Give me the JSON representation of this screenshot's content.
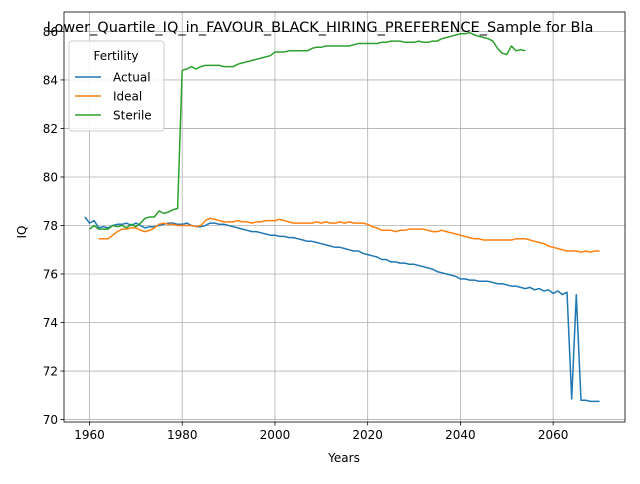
{
  "chart_data": {
    "type": "line",
    "title": "Lower_Quartile_IQ_in_FAVOUR_BLACK_HIRING_PREFERENCE_Sample for Bla",
    "xlabel": "Years",
    "ylabel": "IQ",
    "xlim": [
      1954.5,
      2075.5
    ],
    "ylim": [
      69.9,
      86.8
    ],
    "xticks": [
      1960,
      1980,
      2000,
      2020,
      2040,
      2060
    ],
    "yticks": [
      70,
      72,
      74,
      76,
      78,
      80,
      82,
      84,
      86
    ],
    "grid": true,
    "legend": {
      "title": "Fertility",
      "placement": "upper-left"
    },
    "series": [
      {
        "name": "Actual",
        "color": "#1f77b4",
        "points": [
          [
            1959,
            78.35
          ],
          [
            1960,
            78.1
          ],
          [
            1961,
            78.2
          ],
          [
            1962,
            77.9
          ],
          [
            1963,
            77.95
          ],
          [
            1964,
            77.9
          ],
          [
            1965,
            78.0
          ],
          [
            1966,
            78.05
          ],
          [
            1967,
            78.05
          ],
          [
            1968,
            78.1
          ],
          [
            1969,
            78.0
          ],
          [
            1970,
            78.1
          ],
          [
            1971,
            78.0
          ],
          [
            1972,
            77.9
          ],
          [
            1973,
            77.95
          ],
          [
            1974,
            77.95
          ],
          [
            1975,
            78.0
          ],
          [
            1976,
            78.05
          ],
          [
            1977,
            78.1
          ],
          [
            1978,
            78.1
          ],
          [
            1979,
            78.05
          ],
          [
            1980,
            78.05
          ],
          [
            1981,
            78.1
          ],
          [
            1982,
            78.0
          ],
          [
            1983,
            77.95
          ],
          [
            1984,
            77.95
          ],
          [
            1985,
            78.0
          ],
          [
            1986,
            78.1
          ],
          [
            1987,
            78.1
          ],
          [
            1988,
            78.05
          ],
          [
            1989,
            78.05
          ],
          [
            1990,
            78.0
          ],
          [
            1991,
            77.95
          ],
          [
            1992,
            77.9
          ],
          [
            1993,
            77.85
          ],
          [
            1994,
            77.8
          ],
          [
            1995,
            77.75
          ],
          [
            1996,
            77.75
          ],
          [
            1997,
            77.7
          ],
          [
            1998,
            77.65
          ],
          [
            1999,
            77.6
          ],
          [
            2000,
            77.6
          ],
          [
            2001,
            77.55
          ],
          [
            2002,
            77.55
          ],
          [
            2003,
            77.5
          ],
          [
            2004,
            77.5
          ],
          [
            2005,
            77.45
          ],
          [
            2006,
            77.4
          ],
          [
            2007,
            77.35
          ],
          [
            2008,
            77.35
          ],
          [
            2009,
            77.3
          ],
          [
            2010,
            77.25
          ],
          [
            2011,
            77.2
          ],
          [
            2012,
            77.15
          ],
          [
            2013,
            77.1
          ],
          [
            2014,
            77.1
          ],
          [
            2015,
            77.05
          ],
          [
            2016,
            77.0
          ],
          [
            2017,
            76.95
          ],
          [
            2018,
            76.95
          ],
          [
            2019,
            76.85
          ],
          [
            2020,
            76.8
          ],
          [
            2021,
            76.75
          ],
          [
            2022,
            76.7
          ],
          [
            2023,
            76.6
          ],
          [
            2024,
            76.6
          ],
          [
            2025,
            76.5
          ],
          [
            2026,
            76.5
          ],
          [
            2027,
            76.45
          ],
          [
            2028,
            76.45
          ],
          [
            2029,
            76.4
          ],
          [
            2030,
            76.4
          ],
          [
            2031,
            76.35
          ],
          [
            2032,
            76.3
          ],
          [
            2033,
            76.25
          ],
          [
            2034,
            76.2
          ],
          [
            2035,
            76.1
          ],
          [
            2036,
            76.05
          ],
          [
            2037,
            76.0
          ],
          [
            2038,
            75.95
          ],
          [
            2039,
            75.9
          ],
          [
            2040,
            75.8
          ],
          [
            2041,
            75.8
          ],
          [
            2042,
            75.75
          ],
          [
            2043,
            75.75
          ],
          [
            2044,
            75.7
          ],
          [
            2045,
            75.7
          ],
          [
            2046,
            75.7
          ],
          [
            2047,
            75.65
          ],
          [
            2048,
            75.6
          ],
          [
            2049,
            75.6
          ],
          [
            2050,
            75.55
          ],
          [
            2051,
            75.5
          ],
          [
            2052,
            75.5
          ],
          [
            2053,
            75.45
          ],
          [
            2054,
            75.4
          ],
          [
            2055,
            75.45
          ],
          [
            2056,
            75.35
          ],
          [
            2057,
            75.4
          ],
          [
            2058,
            75.3
          ],
          [
            2059,
            75.35
          ],
          [
            2060,
            75.2
          ],
          [
            2061,
            75.3
          ],
          [
            2062,
            75.15
          ],
          [
            2063,
            75.25
          ],
          [
            2064,
            70.85
          ],
          [
            2065,
            75.15
          ],
          [
            2066,
            70.8
          ],
          [
            2067,
            70.8
          ],
          [
            2068,
            70.75
          ],
          [
            2069,
            70.75
          ],
          [
            2070,
            70.75
          ]
        ]
      },
      {
        "name": "Ideal",
        "color": "#ff7f0e",
        "points": [
          [
            1962,
            77.45
          ],
          [
            1963,
            77.45
          ],
          [
            1964,
            77.45
          ],
          [
            1965,
            77.6
          ],
          [
            1966,
            77.75
          ],
          [
            1967,
            77.85
          ],
          [
            1968,
            77.85
          ],
          [
            1969,
            77.9
          ],
          [
            1970,
            77.9
          ],
          [
            1971,
            77.8
          ],
          [
            1972,
            77.75
          ],
          [
            1973,
            77.8
          ],
          [
            1974,
            77.9
          ],
          [
            1975,
            78.05
          ],
          [
            1976,
            78.1
          ],
          [
            1977,
            78.05
          ],
          [
            1978,
            78.05
          ],
          [
            1979,
            78.0
          ],
          [
            1980,
            78.0
          ],
          [
            1981,
            78.0
          ],
          [
            1982,
            78.0
          ],
          [
            1983,
            77.95
          ],
          [
            1984,
            78.0
          ],
          [
            1985,
            78.2
          ],
          [
            1986,
            78.3
          ],
          [
            1987,
            78.25
          ],
          [
            1988,
            78.2
          ],
          [
            1989,
            78.15
          ],
          [
            1990,
            78.15
          ],
          [
            1991,
            78.15
          ],
          [
            1992,
            78.2
          ],
          [
            1993,
            78.15
          ],
          [
            1994,
            78.15
          ],
          [
            1995,
            78.1
          ],
          [
            1996,
            78.15
          ],
          [
            1997,
            78.15
          ],
          [
            1998,
            78.2
          ],
          [
            1999,
            78.2
          ],
          [
            2000,
            78.2
          ],
          [
            2001,
            78.25
          ],
          [
            2002,
            78.2
          ],
          [
            2003,
            78.15
          ],
          [
            2004,
            78.1
          ],
          [
            2005,
            78.1
          ],
          [
            2006,
            78.1
          ],
          [
            2007,
            78.1
          ],
          [
            2008,
            78.1
          ],
          [
            2009,
            78.15
          ],
          [
            2010,
            78.1
          ],
          [
            2011,
            78.15
          ],
          [
            2012,
            78.1
          ],
          [
            2013,
            78.1
          ],
          [
            2014,
            78.15
          ],
          [
            2015,
            78.1
          ],
          [
            2016,
            78.15
          ],
          [
            2017,
            78.1
          ],
          [
            2018,
            78.1
          ],
          [
            2019,
            78.1
          ],
          [
            2020,
            78.05
          ],
          [
            2021,
            77.95
          ],
          [
            2022,
            77.9
          ],
          [
            2023,
            77.8
          ],
          [
            2024,
            77.8
          ],
          [
            2025,
            77.8
          ],
          [
            2026,
            77.75
          ],
          [
            2027,
            77.8
          ],
          [
            2028,
            77.8
          ],
          [
            2029,
            77.85
          ],
          [
            2030,
            77.85
          ],
          [
            2031,
            77.85
          ],
          [
            2032,
            77.85
          ],
          [
            2033,
            77.8
          ],
          [
            2034,
            77.75
          ],
          [
            2035,
            77.75
          ],
          [
            2036,
            77.8
          ],
          [
            2037,
            77.75
          ],
          [
            2038,
            77.7
          ],
          [
            2039,
            77.65
          ],
          [
            2040,
            77.6
          ],
          [
            2041,
            77.55
          ],
          [
            2042,
            77.5
          ],
          [
            2043,
            77.45
          ],
          [
            2044,
            77.45
          ],
          [
            2045,
            77.4
          ],
          [
            2046,
            77.4
          ],
          [
            2047,
            77.4
          ],
          [
            2048,
            77.4
          ],
          [
            2049,
            77.4
          ],
          [
            2050,
            77.4
          ],
          [
            2051,
            77.4
          ],
          [
            2052,
            77.45
          ],
          [
            2053,
            77.45
          ],
          [
            2054,
            77.45
          ],
          [
            2055,
            77.4
          ],
          [
            2056,
            77.35
          ],
          [
            2057,
            77.3
          ],
          [
            2058,
            77.25
          ],
          [
            2059,
            77.15
          ],
          [
            2060,
            77.1
          ],
          [
            2061,
            77.05
          ],
          [
            2062,
            77.0
          ],
          [
            2063,
            76.95
          ],
          [
            2064,
            76.95
          ],
          [
            2065,
            76.95
          ],
          [
            2066,
            76.9
          ],
          [
            2067,
            76.95
          ],
          [
            2068,
            76.9
          ],
          [
            2069,
            76.95
          ],
          [
            2070,
            76.95
          ]
        ]
      },
      {
        "name": "Sterile",
        "color": "#2ca02c",
        "points": [
          [
            1960,
            77.85
          ],
          [
            1961,
            78.0
          ],
          [
            1962,
            77.85
          ],
          [
            1963,
            77.85
          ],
          [
            1964,
            77.85
          ],
          [
            1965,
            78.0
          ],
          [
            1966,
            77.95
          ],
          [
            1967,
            78.0
          ],
          [
            1968,
            77.9
          ],
          [
            1969,
            78.05
          ],
          [
            1970,
            77.95
          ],
          [
            1971,
            78.1
          ],
          [
            1972,
            78.3
          ],
          [
            1973,
            78.35
          ],
          [
            1974,
            78.35
          ],
          [
            1975,
            78.6
          ],
          [
            1976,
            78.5
          ],
          [
            1977,
            78.55
          ],
          [
            1978,
            78.65
          ],
          [
            1979,
            78.7
          ],
          [
            1980,
            84.4
          ],
          [
            1981,
            84.45
          ],
          [
            1982,
            84.55
          ],
          [
            1983,
            84.45
          ],
          [
            1984,
            84.55
          ],
          [
            1985,
            84.6
          ],
          [
            1986,
            84.6
          ],
          [
            1987,
            84.6
          ],
          [
            1988,
            84.6
          ],
          [
            1989,
            84.55
          ],
          [
            1990,
            84.55
          ],
          [
            1991,
            84.55
          ],
          [
            1992,
            84.65
          ],
          [
            1993,
            84.7
          ],
          [
            1994,
            84.75
          ],
          [
            1995,
            84.8
          ],
          [
            1996,
            84.85
          ],
          [
            1997,
            84.9
          ],
          [
            1998,
            84.95
          ],
          [
            1999,
            85.0
          ],
          [
            2000,
            85.15
          ],
          [
            2001,
            85.15
          ],
          [
            2002,
            85.15
          ],
          [
            2003,
            85.2
          ],
          [
            2004,
            85.2
          ],
          [
            2005,
            85.2
          ],
          [
            2006,
            85.2
          ],
          [
            2007,
            85.2
          ],
          [
            2008,
            85.3
          ],
          [
            2009,
            85.35
          ],
          [
            2010,
            85.35
          ],
          [
            2011,
            85.4
          ],
          [
            2012,
            85.4
          ],
          [
            2013,
            85.4
          ],
          [
            2014,
            85.4
          ],
          [
            2015,
            85.4
          ],
          [
            2016,
            85.4
          ],
          [
            2017,
            85.45
          ],
          [
            2018,
            85.5
          ],
          [
            2019,
            85.5
          ],
          [
            2020,
            85.5
          ],
          [
            2021,
            85.5
          ],
          [
            2022,
            85.5
          ],
          [
            2023,
            85.55
          ],
          [
            2024,
            85.55
          ],
          [
            2025,
            85.6
          ],
          [
            2026,
            85.6
          ],
          [
            2027,
            85.6
          ],
          [
            2028,
            85.55
          ],
          [
            2029,
            85.55
          ],
          [
            2030,
            85.55
          ],
          [
            2031,
            85.6
          ],
          [
            2032,
            85.55
          ],
          [
            2033,
            85.55
          ],
          [
            2034,
            85.6
          ],
          [
            2035,
            85.6
          ],
          [
            2036,
            85.7
          ],
          [
            2037,
            85.75
          ],
          [
            2038,
            85.8
          ],
          [
            2039,
            85.85
          ],
          [
            2040,
            85.9
          ],
          [
            2041,
            85.9
          ],
          [
            2042,
            85.95
          ],
          [
            2043,
            85.85
          ],
          [
            2044,
            85.8
          ],
          [
            2045,
            85.75
          ],
          [
            2046,
            85.7
          ],
          [
            2047,
            85.6
          ],
          [
            2048,
            85.3
          ],
          [
            2049,
            85.1
          ],
          [
            2050,
            85.05
          ],
          [
            2051,
            85.4
          ],
          [
            2052,
            85.2
          ],
          [
            2053,
            85.25
          ],
          [
            2054,
            85.2
          ]
        ]
      }
    ]
  }
}
